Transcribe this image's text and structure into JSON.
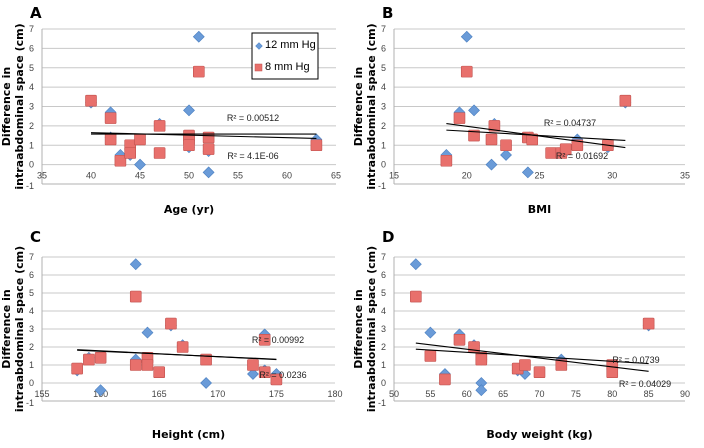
{
  "colors": {
    "series_12": "#6a9bd8",
    "series_12_edge": "#4a7fc0",
    "series_8": "#e8706c",
    "series_8_edge": "#c0504d"
  },
  "legend": {
    "items": [
      {
        "label": "12 mm Hg",
        "marker": "diamond"
      },
      {
        "label": "8 mm Hg",
        "marker": "square"
      }
    ]
  },
  "chart_data": [
    {
      "panel": "A",
      "type": "scatter",
      "xlabel": "Age (yr)",
      "ylabel": "Difference in intraabdominal space (cm)",
      "xlim": [
        35,
        65
      ],
      "xticks": [
        35,
        40,
        45,
        50,
        55,
        60,
        65
      ],
      "ylim": [
        -1,
        7
      ],
      "yticks": [
        -1,
        0,
        1,
        2,
        3,
        4,
        5,
        6,
        7
      ],
      "grid": true,
      "legend": "top-right",
      "series": [
        {
          "name": "12 mm Hg",
          "marker": "diamond",
          "x": [
            40,
            42,
            42,
            43,
            44,
            45,
            45,
            47,
            50,
            50,
            51,
            52,
            52,
            63
          ],
          "y": [
            3.2,
            2.7,
            1.4,
            0.5,
            0.5,
            0.0,
            1.3,
            2.1,
            2.8,
            0.9,
            6.6,
            0.7,
            -0.4,
            1.3
          ],
          "trend": [
            [
              40,
              1.58
            ],
            [
              63,
              1.58
            ]
          ],
          "r2": "R² = 4.1E-06"
        },
        {
          "name": "8 mm Hg",
          "marker": "square",
          "x": [
            40,
            42,
            42,
            43,
            44,
            44,
            45,
            47,
            47,
            50,
            50,
            50,
            51,
            52,
            52,
            63
          ],
          "y": [
            3.3,
            2.4,
            1.3,
            0.2,
            1.0,
            0.6,
            1.3,
            2.0,
            0.6,
            1.5,
            1.3,
            1.0,
            4.8,
            1.4,
            0.8,
            1.0
          ],
          "trend": [
            [
              40,
              1.65
            ],
            [
              63,
              1.35
            ]
          ],
          "r2": "R² = 0.00512"
        }
      ]
    },
    {
      "panel": "B",
      "type": "scatter",
      "xlabel": "BMI",
      "ylabel": "Difference in intraabdominal space (cm)",
      "xlim": [
        15,
        35
      ],
      "xticks": [
        15,
        20,
        25,
        30,
        35
      ],
      "ylim": [
        -1,
        7
      ],
      "yticks": [
        -1,
        0,
        1,
        2,
        3,
        4,
        5,
        6,
        7
      ],
      "grid": true,
      "series": [
        {
          "name": "12 mm Hg",
          "marker": "diamond",
          "x": [
            18.6,
            19.5,
            20.0,
            20.5,
            21.7,
            21.9,
            22.7,
            24.2,
            24.3,
            26.7,
            27.6,
            29.7,
            30.9
          ],
          "y": [
            0.5,
            2.7,
            6.6,
            2.8,
            0.0,
            2.1,
            0.5,
            -0.4,
            1.4,
            0.6,
            1.3,
            0.9,
            3.2
          ],
          "trend": [
            [
              18.6,
              2.12
            ],
            [
              30.9,
              0.88
            ]
          ],
          "r2": "R² = 0.01692"
        },
        {
          "name": "8 mm Hg",
          "marker": "square",
          "x": [
            18.6,
            19.5,
            20.0,
            20.5,
            21.7,
            21.9,
            22.7,
            24.2,
            24.5,
            25.8,
            26.5,
            26.8,
            27.6,
            29.7,
            30.9
          ],
          "y": [
            0.2,
            2.4,
            4.8,
            1.5,
            1.3,
            2.0,
            1.0,
            1.4,
            1.3,
            0.6,
            0.6,
            0.8,
            1.0,
            1.0,
            3.3
          ],
          "trend": [
            [
              18.6,
              1.78
            ],
            [
              30.9,
              1.25
            ]
          ],
          "r2": "R² = 0.04737"
        }
      ]
    },
    {
      "panel": "C",
      "type": "scatter",
      "xlabel": "Height (cm)",
      "ylabel": "Difference in intraabdominal space (cm)",
      "xlim": [
        155,
        180
      ],
      "xticks": [
        155,
        160,
        165,
        170,
        175,
        180
      ],
      "ylim": [
        -1,
        7
      ],
      "yticks": [
        -1,
        0,
        1,
        2,
        3,
        4,
        5,
        6,
        7
      ],
      "grid": true,
      "series": [
        {
          "name": "12 mm Hg",
          "marker": "diamond",
          "x": [
            158,
            159,
            160,
            163,
            163,
            164,
            166,
            167,
            169,
            173,
            174,
            174,
            175
          ],
          "y": [
            0.7,
            1.4,
            -0.4,
            6.6,
            1.3,
            2.8,
            3.2,
            2.1,
            0.0,
            0.5,
            2.7,
            0.7,
            0.5
          ],
          "trend": [
            [
              158,
              1.85
            ],
            [
              175,
              1.3
            ]
          ],
          "r2": "R² = 0.0236"
        },
        {
          "name": "8 mm Hg",
          "marker": "square",
          "x": [
            158,
            159,
            160,
            163,
            163,
            164,
            164,
            165,
            166,
            167,
            169,
            173,
            174,
            174,
            175
          ],
          "y": [
            0.8,
            1.3,
            1.4,
            4.8,
            1.0,
            1.4,
            1.0,
            0.6,
            3.3,
            2.0,
            1.3,
            1.0,
            2.4,
            0.6,
            0.2
          ],
          "trend": [
            [
              158,
              1.82
            ],
            [
              175,
              1.32
            ]
          ],
          "r2": "R² = 0.00992"
        }
      ]
    },
    {
      "panel": "D",
      "type": "scatter",
      "xlabel": "Body weight (kg)",
      "ylabel": "Difference in intraabdominal space (cm)",
      "xlim": [
        50,
        90
      ],
      "xticks": [
        50,
        55,
        60,
        65,
        70,
        75,
        80,
        85,
        90
      ],
      "ylim": [
        -1,
        7
      ],
      "yticks": [
        -1,
        0,
        1,
        2,
        3,
        4,
        5,
        6,
        7
      ],
      "grid": true,
      "series": [
        {
          "name": "12 mm Hg",
          "marker": "diamond",
          "x": [
            53,
            55,
            57,
            59,
            61,
            62,
            62,
            62,
            67,
            68,
            73,
            80,
            85
          ],
          "y": [
            6.6,
            2.8,
            0.5,
            2.7,
            2.1,
            0.0,
            -0.4,
            1.3,
            0.7,
            0.5,
            1.3,
            0.9,
            3.2
          ],
          "trend": [
            [
              53,
              2.22
            ],
            [
              85,
              0.65
            ]
          ],
          "r2": "R² = 0.04029"
        },
        {
          "name": "8 mm Hg",
          "marker": "square",
          "x": [
            53,
            55,
            57,
            59,
            61,
            62,
            62,
            67,
            68,
            70,
            73,
            80,
            80,
            85
          ],
          "y": [
            4.8,
            1.5,
            0.2,
            2.4,
            2.0,
            1.4,
            1.3,
            0.8,
            1.0,
            0.6,
            1.0,
            1.0,
            0.6,
            3.3
          ],
          "trend": [
            [
              53,
              1.88
            ],
            [
              85,
              1.08
            ]
          ],
          "r2": "R² = 0.0739"
        }
      ]
    }
  ]
}
